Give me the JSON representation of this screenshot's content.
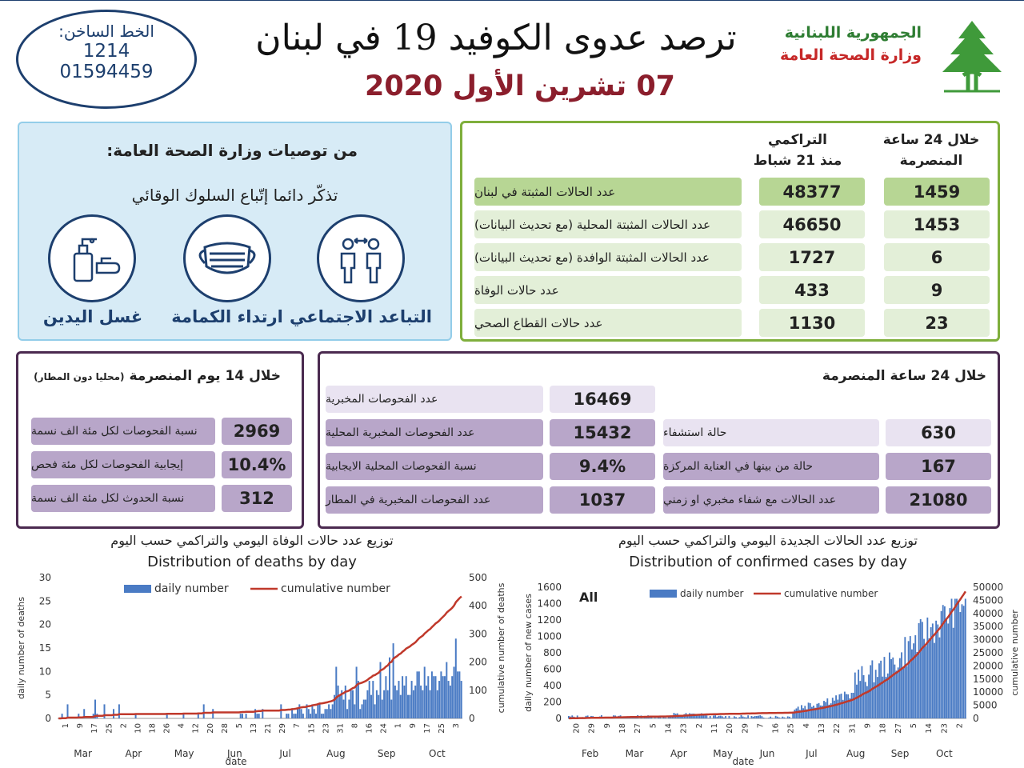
{
  "hotline": {
    "label": "الخط الساخن:",
    "num1": "1214",
    "num2": "01594459"
  },
  "header": {
    "title": "ترصد عدوى الكوفيد 19 في لبنان",
    "date": "07 تشرين الأول 2020",
    "republic": "الجمهورية اللبنانية",
    "ministry": "وزارة الصحة العامة"
  },
  "advice": {
    "title": "من توصيات وزارة الصحة العامة:",
    "subtitle": "تذكّر دائما إتّباع السلوك الوقائي",
    "items": [
      {
        "label": "التباعد الاجتماعي",
        "icon": "social-distance-icon"
      },
      {
        "label": "ارتداء الكمامة",
        "icon": "face-mask-icon"
      },
      {
        "label": "غسل اليدين",
        "icon": "hand-wash-icon"
      }
    ]
  },
  "stats24": {
    "col_24h": "خلال 24 ساعة\nالمنصرمة",
    "col_cum": "التراكمي\nمنذ 21 شباط",
    "rows": [
      {
        "label": "عدد الحالات المثبتة في لبنان",
        "h24": "1459",
        "cum": "48377"
      },
      {
        "label": "عدد الحالات المثبتة المحلية (مع تحديث البيانات)",
        "h24": "1453",
        "cum": "46650"
      },
      {
        "label": "عدد الحالات المثبتة الوافدة (مع تحديث البيانات)",
        "h24": "6",
        "cum": "1727"
      },
      {
        "label": "عدد حالات الوفاة",
        "h24": "9",
        "cum": "433"
      },
      {
        "label": "عدد حالات القطاع الصحي",
        "h24": "23",
        "cum": "1130"
      }
    ]
  },
  "p14": {
    "title": "خلال 14 يوم المنصرمة",
    "note": "(محليا دون المطار)",
    "rows": [
      {
        "label": "نسبة الفحوصات لكل مئة الف نسمة",
        "value": "2969"
      },
      {
        "label": "إيجابية الفحوصات لكل مئة فحص",
        "value": "10.4%"
      },
      {
        "label": "نسبة الحدوث لكل مئة الف نسمة",
        "value": "312"
      }
    ]
  },
  "p24": {
    "title": "خلال 24 ساعة المنصرمة",
    "left": [
      {
        "label": "حالة استشفاء",
        "value": "630"
      },
      {
        "label": "حالة من بينها في العناية المركزة",
        "value": "167"
      },
      {
        "label": "عدد الحالات مع شفاء مخبري او زمني",
        "value": "21080"
      }
    ],
    "right": [
      {
        "label": "عدد الفحوصات المخبرية",
        "value": "16469"
      },
      {
        "label": "عدد الفحوصات المخبرية المحلية",
        "value": "15432"
      },
      {
        "label": "نسبة الفحوصات المحلية الايجابية",
        "value": "9.4%"
      },
      {
        "label": "عدد الفحوصات المخبرية في المطار",
        "value": "1037"
      }
    ]
  },
  "colors": {
    "accent_green": "#7faf3c",
    "accent_purple": "#4b2a50",
    "navy": "#1d3f6e",
    "bar": "#4a7bc4",
    "line": "#c0392b"
  },
  "chart_data": [
    {
      "type": "bar",
      "title_ar": "توزيع عدد حالات الوفاة اليومي والتراكمي حسب اليوم",
      "title": "Distribution of deaths by day",
      "xlabel": "date",
      "ylabel": "daily number of deaths",
      "y2label": "cumulative number of deaths",
      "ylim": [
        0,
        30
      ],
      "y2lim": [
        0,
        500
      ],
      "yticks": [
        0,
        5,
        10,
        15,
        20,
        25,
        30
      ],
      "y2ticks": [
        0,
        100,
        200,
        300,
        400,
        500
      ],
      "legend": [
        "daily number",
        "cumulative number"
      ],
      "legend_position": "top-left",
      "day_ticks": [
        "1",
        "9",
        "17",
        "25",
        "2",
        "10",
        "18",
        "26",
        "4",
        "12",
        "20",
        "28",
        "5",
        "13",
        "21",
        "29",
        "7",
        "15",
        "23",
        "31",
        "8",
        "16",
        "24",
        "1",
        "9",
        "17",
        "25",
        "3"
      ],
      "months": [
        "Mar",
        "Apr",
        "May",
        "Jun",
        "Jul",
        "Aug",
        "Sep",
        "Oct"
      ],
      "series": [
        {
          "name": "daily number",
          "values": "generated",
          "daily_peak": 17
        },
        {
          "name": "cumulative number",
          "end": 433
        }
      ]
    },
    {
      "type": "bar",
      "title_ar": "توزيع عدد الحالات الجديدة اليومي والتراكمي حسب اليوم",
      "title": "Distribution of confirmed cases by day",
      "label": "All",
      "xlabel": "date",
      "ylabel": "daily number of new cases",
      "y2label": "cumulative number",
      "ylim": [
        0,
        1600
      ],
      "y2lim": [
        0,
        50000
      ],
      "yticks": [
        0,
        200,
        400,
        600,
        800,
        1000,
        1200,
        1400,
        1600
      ],
      "y2ticks": [
        0,
        5000,
        10000,
        15000,
        20000,
        25000,
        30000,
        35000,
        40000,
        45000,
        50000
      ],
      "legend": [
        "daily number",
        "cumulative number"
      ],
      "legend_position": "top-center",
      "day_ticks": [
        "20",
        "29",
        "9",
        "18",
        "27",
        "5",
        "14",
        "23",
        "2",
        "11",
        "20",
        "29",
        "7",
        "16",
        "25",
        "4",
        "13",
        "22",
        "31",
        "9",
        "18",
        "27",
        "5",
        "14",
        "23",
        "2"
      ],
      "months": [
        "Feb",
        "Mar",
        "Apr",
        "May",
        "Jun",
        "Jul",
        "Aug",
        "Sep",
        "Oct"
      ],
      "series": [
        {
          "name": "daily number",
          "daily_peak": 1459
        },
        {
          "name": "cumulative number",
          "end": 48377
        }
      ]
    }
  ]
}
